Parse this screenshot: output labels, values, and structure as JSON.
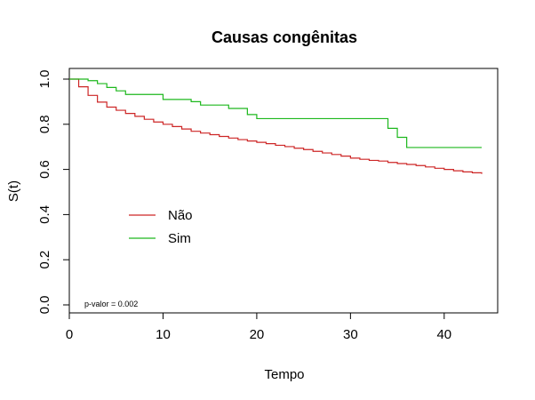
{
  "chart_data": {
    "type": "line",
    "title": "Causas congênitas",
    "xlabel": "Tempo",
    "ylabel": "S(t)",
    "xlim": [
      0,
      44
    ],
    "ylim": [
      0,
      1
    ],
    "x_ticks": [
      "0",
      "10",
      "20",
      "30",
      "40"
    ],
    "y_ticks": [
      "0.0",
      "0.2",
      "0.4",
      "0.6",
      "0.8",
      "1.0"
    ],
    "grid": false,
    "legend": "center-left",
    "annotation": "p-valor = 0.002",
    "series": [
      {
        "name": "Não",
        "color": "#CD2626",
        "step": true,
        "x": [
          0,
          1,
          2,
          3,
          4,
          5,
          6,
          7,
          8,
          9,
          10,
          11,
          12,
          13,
          14,
          15,
          16,
          17,
          18,
          19,
          20,
          21,
          22,
          23,
          24,
          25,
          26,
          27,
          28,
          29,
          30,
          31,
          32,
          33,
          34,
          35,
          36,
          37,
          38,
          39,
          40,
          41,
          42,
          43,
          44
        ],
        "y": [
          1.0,
          0.966,
          0.928,
          0.898,
          0.876,
          0.862,
          0.848,
          0.835,
          0.822,
          0.81,
          0.8,
          0.79,
          0.779,
          0.769,
          0.761,
          0.754,
          0.746,
          0.739,
          0.732,
          0.726,
          0.72,
          0.714,
          0.707,
          0.701,
          0.694,
          0.688,
          0.68,
          0.673,
          0.666,
          0.659,
          0.65,
          0.645,
          0.64,
          0.637,
          0.631,
          0.626,
          0.622,
          0.617,
          0.611,
          0.605,
          0.6,
          0.594,
          0.589,
          0.585,
          0.58
        ]
      },
      {
        "name": "Sim",
        "color": "#1DB81D",
        "step": true,
        "x": [
          0,
          2,
          3,
          4,
          5,
          6,
          10,
          13,
          14,
          17,
          19,
          20,
          34,
          35,
          36,
          44
        ],
        "y": [
          1.0,
          0.993,
          0.98,
          0.963,
          0.948,
          0.932,
          0.91,
          0.9,
          0.885,
          0.87,
          0.843,
          0.825,
          0.782,
          0.742,
          0.697,
          0.697
        ]
      }
    ]
  }
}
